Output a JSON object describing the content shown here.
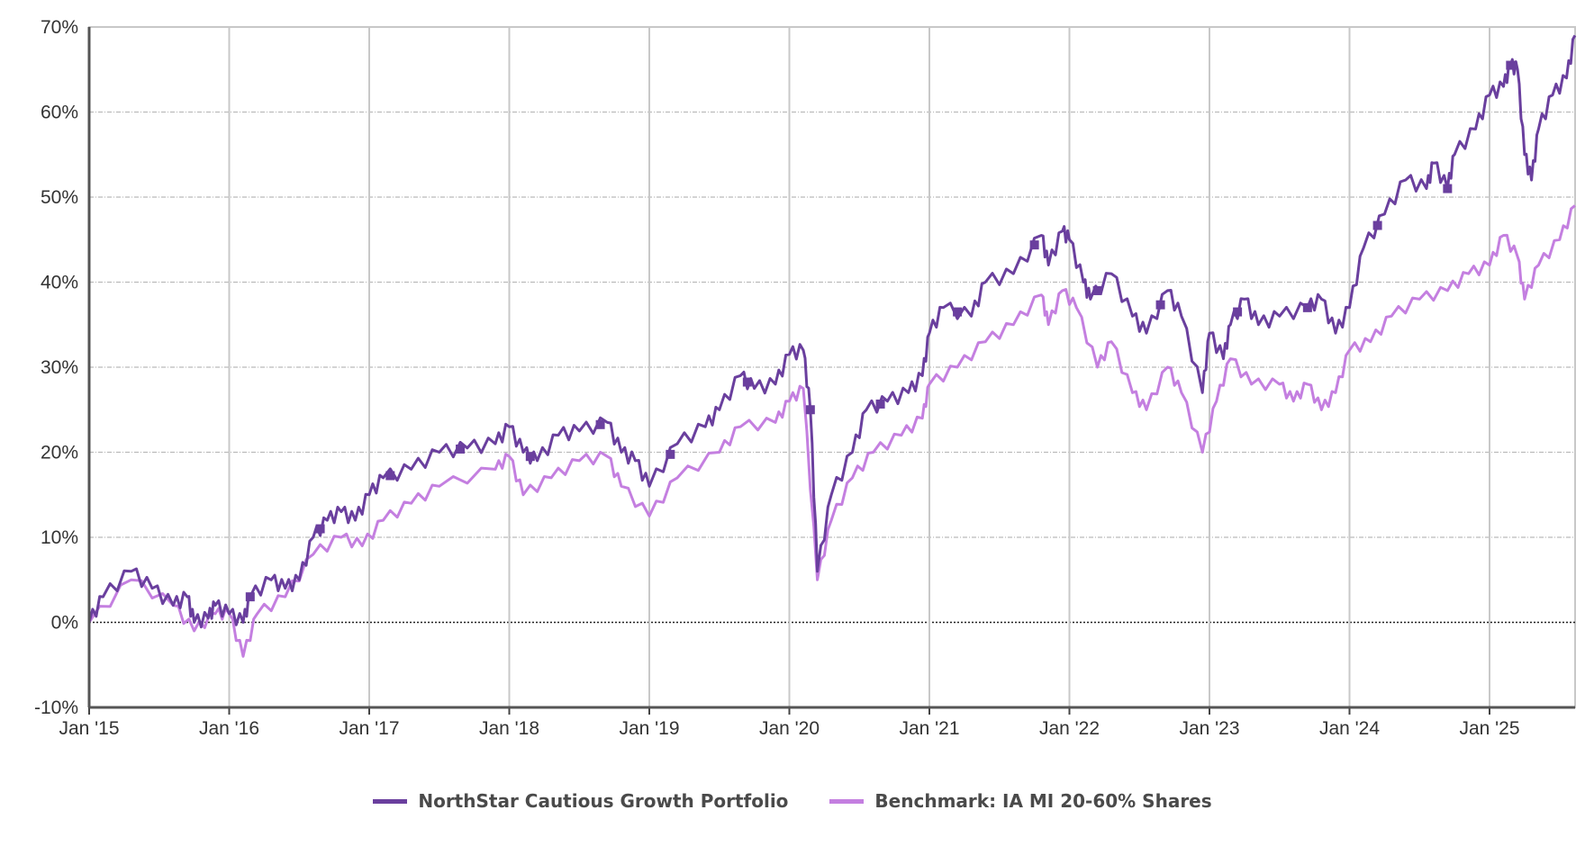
{
  "chart_data": {
    "type": "line",
    "title": "",
    "xlabel": "",
    "ylabel": "",
    "ylim": [
      -10,
      70
    ],
    "xlim": [
      2015.0,
      2025.61
    ],
    "grid": true,
    "legend_position": "bottom-center",
    "y_ticks": [
      -10,
      0,
      10,
      20,
      30,
      40,
      50,
      60,
      70
    ],
    "y_tick_labels": [
      "-10%",
      "0%",
      "10%",
      "20%",
      "30%",
      "40%",
      "50%",
      "60%",
      "70%"
    ],
    "x_ticks": [
      2015,
      2016,
      2017,
      2018,
      2019,
      2020,
      2021,
      2022,
      2023,
      2024,
      2025
    ],
    "x_tick_labels": [
      "Jan '15",
      "Jan '16",
      "Jan '17",
      "Jan '18",
      "Jan '19",
      "Jan '20",
      "Jan '21",
      "Jan '22",
      "Jan '23",
      "Jan '24",
      "Jan '25"
    ],
    "series": [
      {
        "name": "NorthStar Cautious Growth Portfolio",
        "color": "#6a3f9e",
        "markers": [
          2016.15,
          2016.65,
          2017.15,
          2017.65,
          2018.15,
          2018.65,
          2019.15,
          2019.7,
          2020.15,
          2020.65,
          2021.2,
          2021.75,
          2022.2,
          2022.65,
          2023.2,
          2023.7,
          2024.2,
          2024.7,
          2025.15
        ],
        "x": [
          2015.0,
          2015.1,
          2015.3,
          2015.45,
          2015.6,
          2015.7,
          2015.75,
          2015.85,
          2015.9,
          2016.0,
          2016.1,
          2016.15,
          2016.3,
          2016.4,
          2016.5,
          2016.6,
          2016.7,
          2016.8,
          2016.9,
          2017.0,
          2017.1,
          2017.3,
          2017.5,
          2017.7,
          2017.9,
          2018.0,
          2018.1,
          2018.2,
          2018.35,
          2018.5,
          2018.7,
          2018.8,
          2018.9,
          2019.0,
          2019.2,
          2019.4,
          2019.5,
          2019.65,
          2019.75,
          2019.9,
          2020.0,
          2020.1,
          2020.15,
          2020.2,
          2020.3,
          2020.45,
          2020.55,
          2020.7,
          2020.85,
          2020.95,
          2021.0,
          2021.1,
          2021.3,
          2021.4,
          2021.6,
          2021.8,
          2021.85,
          2021.95,
          2022.0,
          2022.1,
          2022.15,
          2022.3,
          2022.45,
          2022.55,
          2022.7,
          2022.8,
          2022.95,
          2023.0,
          2023.1,
          2023.15,
          2023.25,
          2023.35,
          2023.5,
          2023.7,
          2023.8,
          2023.9,
          2024.0,
          2024.1,
          2024.25,
          2024.4,
          2024.55,
          2024.6,
          2024.7,
          2024.75,
          2024.9,
          2025.0,
          2025.1,
          2025.15,
          2025.2,
          2025.25,
          2025.3,
          2025.35,
          2025.45,
          2025.55,
          2025.61
        ],
        "values": [
          0,
          3,
          6,
          4,
          2,
          3,
          0,
          0.5,
          2,
          1,
          0,
          3,
          5,
          4,
          5,
          10,
          12,
          13,
          12,
          15,
          17,
          18,
          20,
          20.5,
          21,
          23,
          20,
          19,
          22,
          22.5,
          23.5,
          20,
          19,
          16,
          21,
          23,
          25,
          29,
          27.5,
          28,
          31.5,
          32,
          25,
          6,
          15,
          20,
          25,
          26,
          27,
          29,
          34,
          37,
          36,
          40,
          41,
          45.5,
          42,
          46,
          45,
          40,
          38,
          41,
          36,
          34,
          39,
          36,
          27,
          34,
          31,
          35,
          38,
          35,
          36,
          37,
          38,
          34,
          37,
          44,
          48,
          52,
          51,
          54,
          51,
          55,
          58,
          62,
          63,
          65.5,
          65,
          55,
          52,
          58,
          62,
          64,
          69
        ]
      },
      {
        "name": "Benchmark: IA MI 20-60% Shares",
        "color": "#c47fe0",
        "x": [
          2015.0,
          2015.3,
          2015.6,
          2015.75,
          2015.9,
          2016.0,
          2016.1,
          2016.2,
          2016.4,
          2016.6,
          2016.8,
          2016.95,
          2017.1,
          2017.3,
          2017.5,
          2017.9,
          2018.0,
          2018.1,
          2018.3,
          2018.5,
          2018.7,
          2018.8,
          2019.0,
          2019.2,
          2019.5,
          2019.65,
          2019.9,
          2020.0,
          2020.1,
          2020.2,
          2020.3,
          2020.45,
          2020.6,
          2020.8,
          2020.95,
          2021.0,
          2021.2,
          2021.4,
          2021.6,
          2021.8,
          2021.85,
          2021.95,
          2022.05,
          2022.2,
          2022.3,
          2022.45,
          2022.55,
          2022.7,
          2022.8,
          2022.95,
          2023.05,
          2023.15,
          2023.3,
          2023.5,
          2023.6,
          2023.7,
          2023.8,
          2023.9,
          2024.0,
          2024.15,
          2024.3,
          2024.5,
          2024.7,
          2024.85,
          2025.0,
          2025.1,
          2025.2,
          2025.25,
          2025.35,
          2025.5,
          2025.61
        ],
        "values": [
          0,
          5,
          2,
          -1,
          1,
          1,
          -4,
          1,
          3,
          8,
          10,
          9,
          12,
          14,
          16,
          18,
          19.5,
          15,
          17,
          19,
          19.5,
          16,
          12.5,
          17,
          20,
          23,
          23.5,
          26,
          27.5,
          5,
          12,
          17,
          20,
          22,
          24,
          28,
          30,
          33,
          35,
          38.5,
          35,
          39,
          37,
          30,
          33,
          27,
          25,
          30,
          27,
          20,
          26,
          31,
          28,
          28,
          26,
          28,
          25,
          27,
          32,
          33,
          36,
          38,
          39,
          41,
          42,
          45.5,
          43,
          38,
          42,
          45,
          49
        ]
      }
    ]
  }
}
